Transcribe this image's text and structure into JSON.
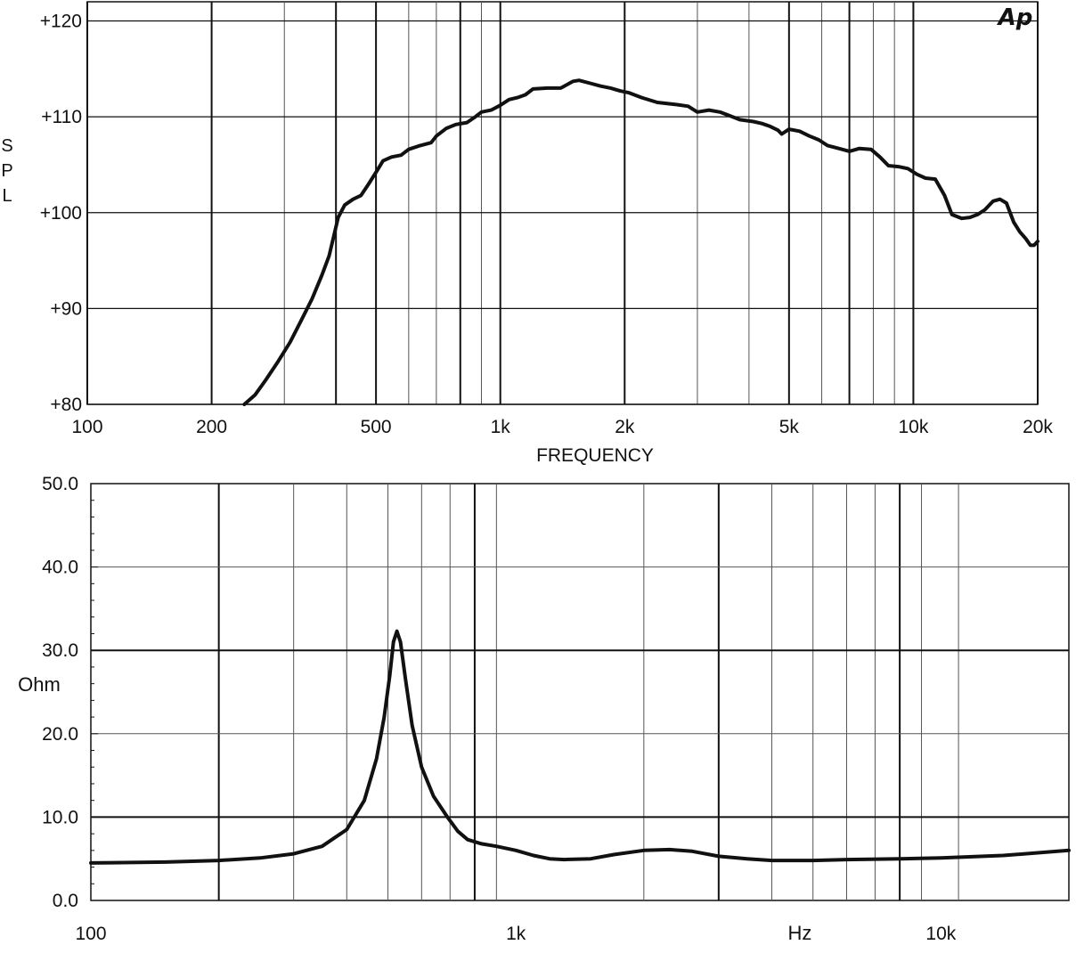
{
  "chart_data": [
    {
      "type": "line",
      "title": "",
      "brand": "Ap",
      "xlabel": "FREQUENCY",
      "ylabel": "S P L",
      "xscale": "log",
      "xlim": [
        100,
        20000
      ],
      "ylim": [
        80,
        122
      ],
      "grid": true,
      "x_ticks": [
        {
          "value": 100,
          "label": "100"
        },
        {
          "value": 200,
          "label": "200"
        },
        {
          "value": 500,
          "label": "500"
        },
        {
          "value": 1000,
          "label": "1k"
        },
        {
          "value": 2000,
          "label": "2k"
        },
        {
          "value": 5000,
          "label": "5k"
        },
        {
          "value": 10000,
          "label": "10k"
        },
        {
          "value": 20000,
          "label": "20k"
        }
      ],
      "y_ticks": [
        {
          "value": 80,
          "label": "+80"
        },
        {
          "value": 90,
          "label": "+90"
        },
        {
          "value": 100,
          "label": "+100"
        },
        {
          "value": 110,
          "label": "+110"
        },
        {
          "value": 120,
          "label": "+120"
        }
      ],
      "x_grid_major": [
        100,
        200,
        400,
        500,
        800,
        1000,
        2000,
        5000,
        7000,
        10000,
        20000
      ],
      "x_grid_minor": [
        300,
        600,
        700,
        900,
        3000,
        4000,
        6000,
        8000,
        9000
      ],
      "y_grid": [
        80,
        90,
        100,
        110,
        120
      ],
      "series": [
        {
          "points": [
            [
              240,
              80.0
            ],
            [
              255,
              81.0
            ],
            [
              270,
              82.5
            ],
            [
              290,
              84.5
            ],
            [
              310,
              86.5
            ],
            [
              330,
              88.8
            ],
            [
              350,
              91.0
            ],
            [
              370,
              93.5
            ],
            [
              385,
              95.5
            ],
            [
              395,
              97.5
            ],
            [
              405,
              99.5
            ],
            [
              420,
              100.8
            ],
            [
              440,
              101.4
            ],
            [
              460,
              101.8
            ],
            [
              480,
              103.0
            ],
            [
              505,
              104.5
            ],
            [
              520,
              105.4
            ],
            [
              545,
              105.8
            ],
            [
              575,
              106.0
            ],
            [
              600,
              106.6
            ],
            [
              640,
              107.0
            ],
            [
              680,
              107.3
            ],
            [
              700,
              108.0
            ],
            [
              740,
              108.8
            ],
            [
              780,
              109.2
            ],
            [
              830,
              109.4
            ],
            [
              870,
              110.0
            ],
            [
              900,
              110.5
            ],
            [
              950,
              110.7
            ],
            [
              1000,
              111.2
            ],
            [
              1050,
              111.8
            ],
            [
              1100,
              112.0
            ],
            [
              1150,
              112.3
            ],
            [
              1200,
              112.9
            ],
            [
              1300,
              113.0
            ],
            [
              1400,
              113.0
            ],
            [
              1500,
              113.7
            ],
            [
              1550,
              113.8
            ],
            [
              1650,
              113.5
            ],
            [
              1750,
              113.2
            ],
            [
              1850,
              113.0
            ],
            [
              1950,
              112.7
            ],
            [
              2050,
              112.5
            ],
            [
              2200,
              112.0
            ],
            [
              2400,
              111.5
            ],
            [
              2650,
              111.3
            ],
            [
              2850,
              111.1
            ],
            [
              3000,
              110.5
            ],
            [
              3200,
              110.7
            ],
            [
              3400,
              110.5
            ],
            [
              3600,
              110.1
            ],
            [
              3800,
              109.7
            ],
            [
              4100,
              109.5
            ],
            [
              4300,
              109.3
            ],
            [
              4500,
              109.0
            ],
            [
              4700,
              108.6
            ],
            [
              4800,
              108.2
            ],
            [
              5000,
              108.7
            ],
            [
              5300,
              108.5
            ],
            [
              5600,
              108.0
            ],
            [
              5900,
              107.6
            ],
            [
              6200,
              107.0
            ],
            [
              6600,
              106.7
            ],
            [
              7000,
              106.4
            ],
            [
              7400,
              106.7
            ],
            [
              7900,
              106.6
            ],
            [
              8300,
              105.8
            ],
            [
              8700,
              104.9
            ],
            [
              9200,
              104.8
            ],
            [
              9700,
              104.6
            ],
            [
              10200,
              104.0
            ],
            [
              10700,
              103.6
            ],
            [
              11300,
              103.5
            ],
            [
              11900,
              101.8
            ],
            [
              12400,
              99.8
            ],
            [
              13100,
              99.4
            ],
            [
              13700,
              99.5
            ],
            [
              14300,
              99.8
            ],
            [
              14900,
              100.3
            ],
            [
              15600,
              101.2
            ],
            [
              16200,
              101.4
            ],
            [
              16800,
              101.0
            ],
            [
              17500,
              99.0
            ],
            [
              18100,
              98.0
            ],
            [
              18700,
              97.3
            ],
            [
              19200,
              96.6
            ],
            [
              19600,
              96.6
            ],
            [
              20000,
              97.0
            ]
          ]
        }
      ]
    },
    {
      "type": "line",
      "title": "",
      "xlabel": "",
      "ylabel": "Ohm",
      "unit_label": "Hz",
      "xscale": "log",
      "xlim": [
        100,
        20000
      ],
      "ylim": [
        0,
        50
      ],
      "grid": true,
      "x_ticks": [
        {
          "value": 100,
          "label": "100"
        },
        {
          "value": 1000,
          "label": "1k"
        },
        {
          "value": 10000,
          "label": "10k"
        }
      ],
      "y_ticks": [
        {
          "value": 0,
          "label": "0.0"
        },
        {
          "value": 10,
          "label": "10.0"
        },
        {
          "value": 20,
          "label": "20.0"
        },
        {
          "value": 30,
          "label": "30.0"
        },
        {
          "value": 40,
          "label": "40.0"
        },
        {
          "value": 50,
          "label": "50.0"
        }
      ],
      "x_grid_major": [
        200,
        800,
        3000,
        8000
      ],
      "x_grid_minor": [
        300,
        400,
        500,
        600,
        700,
        900,
        2000,
        4000,
        5000,
        6000,
        7000,
        9000,
        11000
      ],
      "y_grid_minor": [
        40,
        20
      ],
      "y_grid_major": [
        30,
        10
      ],
      "series": [
        {
          "points": [
            [
              100,
              4.5
            ],
            [
              150,
              4.6
            ],
            [
              200,
              4.8
            ],
            [
              250,
              5.1
            ],
            [
              300,
              5.6
            ],
            [
              350,
              6.5
            ],
            [
              400,
              8.5
            ],
            [
              440,
              12.0
            ],
            [
              470,
              17.0
            ],
            [
              490,
              22.0
            ],
            [
              505,
              27.0
            ],
            [
              515,
              31.0
            ],
            [
              525,
              32.3
            ],
            [
              535,
              31.0
            ],
            [
              550,
              26.5
            ],
            [
              570,
              21.0
            ],
            [
              600,
              16.0
            ],
            [
              640,
              12.5
            ],
            [
              690,
              10.0
            ],
            [
              730,
              8.3
            ],
            [
              770,
              7.3
            ],
            [
              830,
              6.8
            ],
            [
              900,
              6.5
            ],
            [
              1000,
              6.0
            ],
            [
              1100,
              5.4
            ],
            [
              1200,
              5.0
            ],
            [
              1300,
              4.9
            ],
            [
              1500,
              5.0
            ],
            [
              1700,
              5.5
            ],
            [
              2000,
              6.0
            ],
            [
              2300,
              6.1
            ],
            [
              2600,
              5.9
            ],
            [
              3000,
              5.3
            ],
            [
              3500,
              5.0
            ],
            [
              4000,
              4.8
            ],
            [
              5000,
              4.8
            ],
            [
              6000,
              4.9
            ],
            [
              8000,
              5.0
            ],
            [
              10000,
              5.1
            ],
            [
              14000,
              5.4
            ],
            [
              20000,
              6.0
            ]
          ]
        }
      ]
    }
  ]
}
